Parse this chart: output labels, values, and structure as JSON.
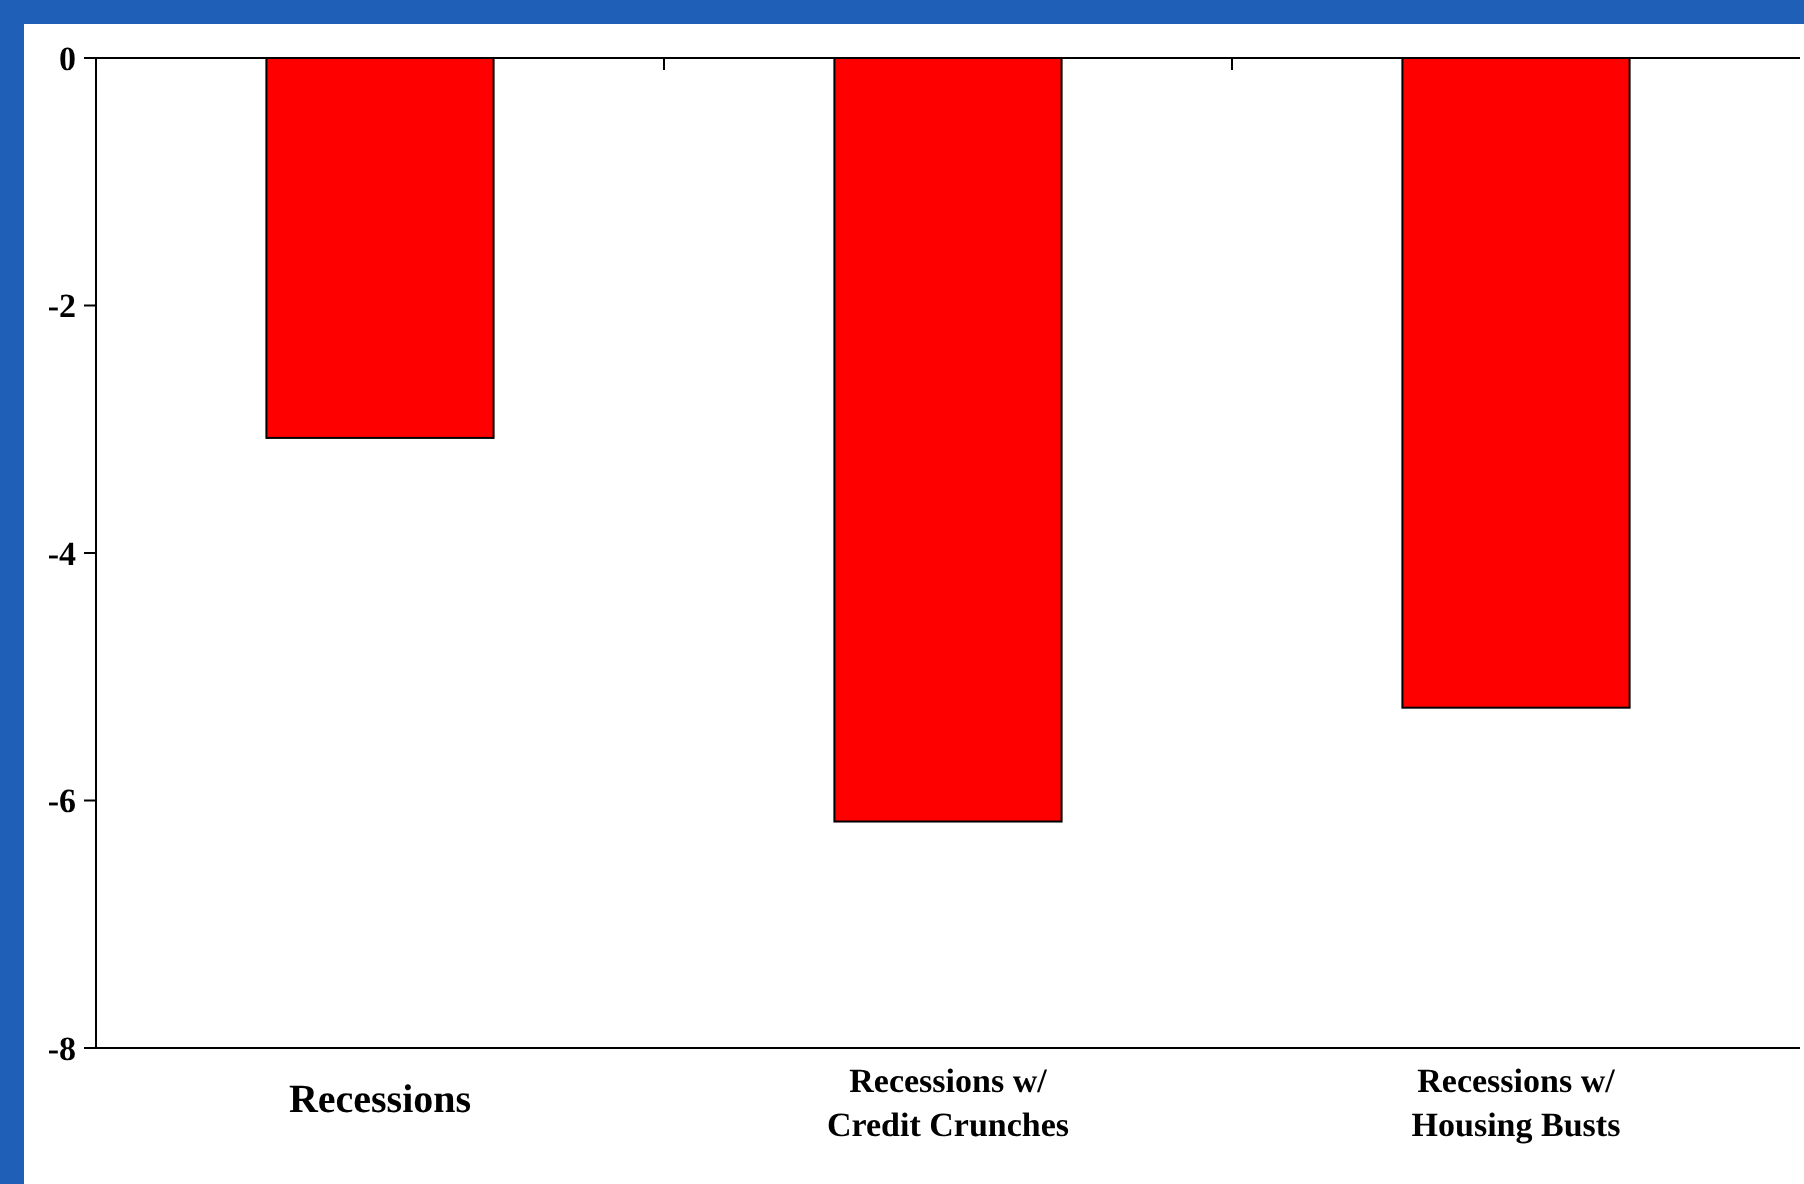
{
  "chart_data": {
    "type": "bar",
    "categories": [
      "Recessions",
      "Recessions w/\nCredit Crunches",
      "Recessions w/\nHousing Busts"
    ],
    "values": [
      -3.07,
      -6.17,
      -5.25
    ],
    "color": "#ff0000",
    "ylim": [
      -8,
      0
    ],
    "yticks": [
      -8,
      -6,
      -4,
      -2,
      0
    ],
    "grid": false
  }
}
